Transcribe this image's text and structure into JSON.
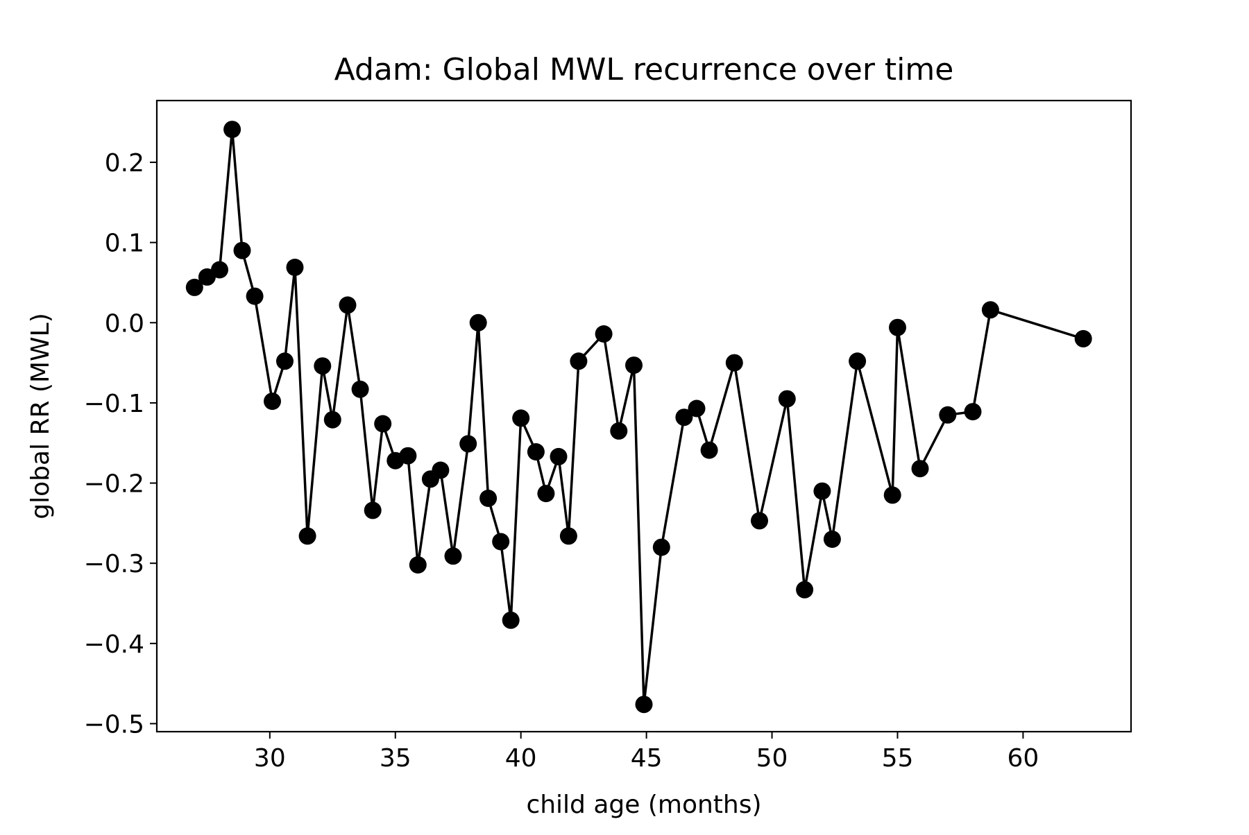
{
  "chart_data": {
    "type": "line",
    "title": "Adam: Global MWL recurrence over time",
    "xlabel": "child age (months)",
    "ylabel": "global RR (MWL)",
    "xlim": [
      25.5,
      64.3
    ],
    "ylim": [
      -0.51,
      0.277
    ],
    "xticks": [
      30,
      35,
      40,
      45,
      50,
      55,
      60
    ],
    "yticks": [
      -0.5,
      -0.4,
      -0.3,
      -0.2,
      -0.1,
      0.0,
      0.1,
      0.2
    ],
    "xtick_labels": [
      "30",
      "35",
      "40",
      "45",
      "50",
      "55",
      "60"
    ],
    "ytick_labels": [
      "−0.5",
      "−0.4",
      "−0.3",
      "−0.2",
      "−0.1",
      "0.0",
      "0.1",
      "0.2"
    ],
    "grid": false,
    "line_color": "#000000",
    "marker": "circle",
    "series": [
      {
        "name": "",
        "x": [
          27.0,
          27.5,
          28.0,
          28.5,
          28.9,
          29.4,
          30.1,
          30.6,
          31.0,
          31.5,
          32.1,
          32.5,
          33.1,
          33.6,
          34.1,
          34.5,
          35.0,
          35.5,
          35.9,
          36.4,
          36.8,
          37.3,
          37.9,
          38.3,
          38.7,
          39.2,
          39.6,
          40.0,
          40.6,
          41.0,
          41.5,
          41.9,
          42.3,
          43.3,
          43.9,
          44.5,
          44.9,
          45.6,
          46.5,
          47.0,
          47.5,
          48.5,
          49.5,
          50.6,
          51.3,
          52.0,
          52.4,
          53.4,
          54.8,
          55.0,
          55.9,
          57.0,
          58.0,
          58.7,
          62.4
        ],
        "y": [
          0.044,
          0.057,
          0.066,
          0.241,
          0.09,
          0.033,
          -0.098,
          -0.048,
          0.069,
          -0.266,
          -0.054,
          -0.121,
          0.022,
          -0.083,
          -0.234,
          -0.126,
          -0.172,
          -0.166,
          -0.302,
          -0.195,
          -0.184,
          -0.291,
          -0.151,
          0.0,
          -0.219,
          -0.273,
          -0.371,
          -0.119,
          -0.161,
          -0.213,
          -0.167,
          -0.266,
          -0.048,
          -0.014,
          -0.135,
          -0.053,
          -0.476,
          -0.28,
          -0.118,
          -0.107,
          -0.159,
          -0.05,
          -0.247,
          -0.095,
          -0.333,
          -0.21,
          -0.27,
          -0.048,
          -0.215,
          -0.006,
          -0.182,
          -0.115,
          -0.111,
          0.016,
          -0.02
        ]
      }
    ]
  }
}
